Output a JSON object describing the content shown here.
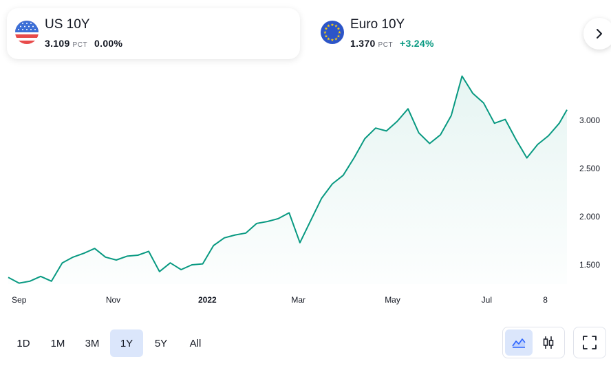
{
  "tickers": [
    {
      "symbol": "US 10Y",
      "value": "3.109",
      "unit": "PCT",
      "change": "0.00%",
      "flag": "us-flag-icon",
      "selected": true
    },
    {
      "symbol": "Euro 10Y",
      "value": "1.370",
      "unit": "PCT",
      "change": "+3.24%",
      "flag": "eu-flag-icon",
      "selected": false
    }
  ],
  "colors": {
    "line": "#089981",
    "positive": "#089981",
    "accent": "#2962ff",
    "active_bg": "#dbe6fb"
  },
  "ranges": [
    "1D",
    "1M",
    "3M",
    "1Y",
    "5Y",
    "All"
  ],
  "active_range": "1Y",
  "chart_types": [
    "area-chart-icon",
    "candlestick-icon"
  ],
  "active_chart_type": "area-chart-icon",
  "fullscreen_icon": "fullscreen-icon",
  "chart_data": {
    "type": "area",
    "title": "",
    "xlabel": "",
    "ylabel": "",
    "x_ticks": [
      {
        "date": "2021-09-01",
        "label": "Sep",
        "bold": false
      },
      {
        "date": "2021-11-01",
        "label": "Nov",
        "bold": false
      },
      {
        "date": "2022-01-01",
        "label": "2022",
        "bold": true
      },
      {
        "date": "2022-03-01",
        "label": "Mar",
        "bold": false
      },
      {
        "date": "2022-05-01",
        "label": "May",
        "bold": false
      },
      {
        "date": "2022-07-01",
        "label": "Jul",
        "bold": false
      },
      {
        "date": "2022-08-08",
        "label": "8",
        "bold": false
      }
    ],
    "y_ticks": [
      "1.500",
      "2.000",
      "2.500",
      "3.000"
    ],
    "ylim": [
      1.3,
      3.5
    ],
    "grid": false,
    "series": [
      {
        "x": [
          "2021-08-25",
          "2021-09-01",
          "2021-09-08",
          "2021-09-15",
          "2021-09-22",
          "2021-09-29",
          "2021-10-06",
          "2021-10-13",
          "2021-10-20",
          "2021-10-27",
          "2021-11-03",
          "2021-11-10",
          "2021-11-17",
          "2021-11-24",
          "2021-12-01",
          "2021-12-08",
          "2021-12-15",
          "2021-12-22",
          "2021-12-29",
          "2022-01-05",
          "2022-01-12",
          "2022-01-19",
          "2022-01-26",
          "2022-02-02",
          "2022-02-09",
          "2022-02-16",
          "2022-02-23",
          "2022-03-02",
          "2022-03-09",
          "2022-03-16",
          "2022-03-23",
          "2022-03-30",
          "2022-04-06",
          "2022-04-13",
          "2022-04-20",
          "2022-04-27",
          "2022-05-04",
          "2022-05-11",
          "2022-05-18",
          "2022-05-25",
          "2022-06-01",
          "2022-06-08",
          "2022-06-15",
          "2022-06-22",
          "2022-06-29",
          "2022-07-06",
          "2022-07-13",
          "2022-07-20",
          "2022-07-27",
          "2022-08-03",
          "2022-08-10",
          "2022-08-17",
          "2022-08-22"
        ],
        "values": [
          1.37,
          1.31,
          1.33,
          1.38,
          1.33,
          1.52,
          1.58,
          1.62,
          1.67,
          1.58,
          1.55,
          1.59,
          1.6,
          1.64,
          1.43,
          1.52,
          1.45,
          1.5,
          1.51,
          1.7,
          1.78,
          1.81,
          1.83,
          1.93,
          1.95,
          1.98,
          2.04,
          1.73,
          1.96,
          2.19,
          2.34,
          2.43,
          2.61,
          2.81,
          2.92,
          2.89,
          2.99,
          3.12,
          2.87,
          2.76,
          2.85,
          3.05,
          3.46,
          3.28,
          3.18,
          2.97,
          3.01,
          2.8,
          2.61,
          2.75,
          2.84,
          2.97,
          3.11
        ]
      }
    ]
  }
}
